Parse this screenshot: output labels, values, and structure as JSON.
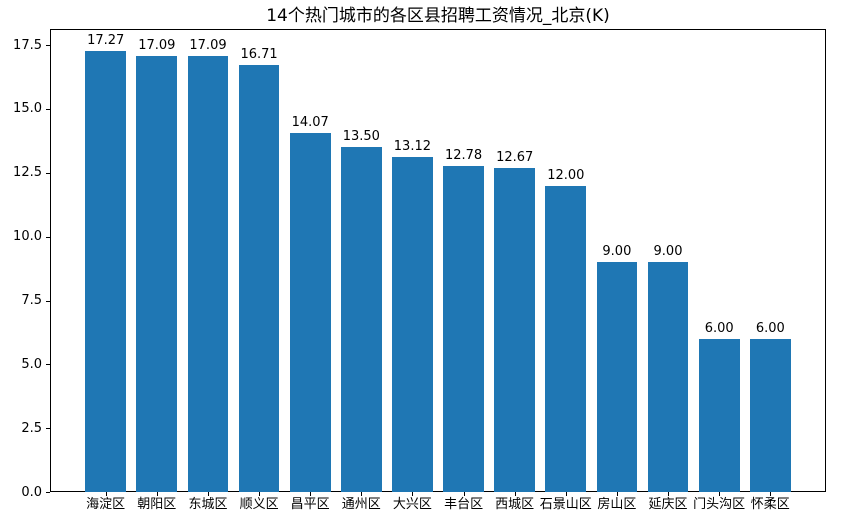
{
  "title": "14个热门城市的各区县招聘工资情况_北京(K)",
  "colors": {
    "bar": "#1f77b4",
    "text": "#000000",
    "background": "#ffffff",
    "spine": "#000000"
  },
  "chart_data": {
    "type": "bar",
    "title": "14个热门城市的各区县招聘工资情况_北京(K)",
    "xlabel": "",
    "ylabel": "",
    "categories": [
      "海淀区",
      "朝阳区",
      "东城区",
      "顺义区",
      "昌平区",
      "通州区",
      "大兴区",
      "丰台区",
      "西城区",
      "石景山区",
      "房山区",
      "延庆区",
      "门头沟区",
      "怀柔区"
    ],
    "values": [
      17.27,
      17.09,
      17.09,
      16.71,
      14.07,
      13.5,
      13.12,
      12.78,
      12.67,
      12.0,
      9.0,
      9.0,
      6.0,
      6.0
    ],
    "value_labels": [
      "17.27",
      "17.09",
      "17.09",
      "16.71",
      "14.07",
      "13.50",
      "13.12",
      "12.78",
      "12.67",
      "12.00",
      "9.00",
      "9.00",
      "6.00",
      "6.00"
    ],
    "yticks": [
      0.0,
      2.5,
      5.0,
      7.5,
      10.0,
      12.5,
      15.0,
      17.5
    ],
    "ytick_labels": [
      "0.0",
      "2.5",
      "5.0",
      "7.5",
      "10.0",
      "12.5",
      "15.0",
      "17.5"
    ],
    "ylim": [
      0,
      18.13
    ],
    "bar_width_fraction": 0.8,
    "bar_color": "#1f77b4",
    "grid": false,
    "legend": null
  }
}
